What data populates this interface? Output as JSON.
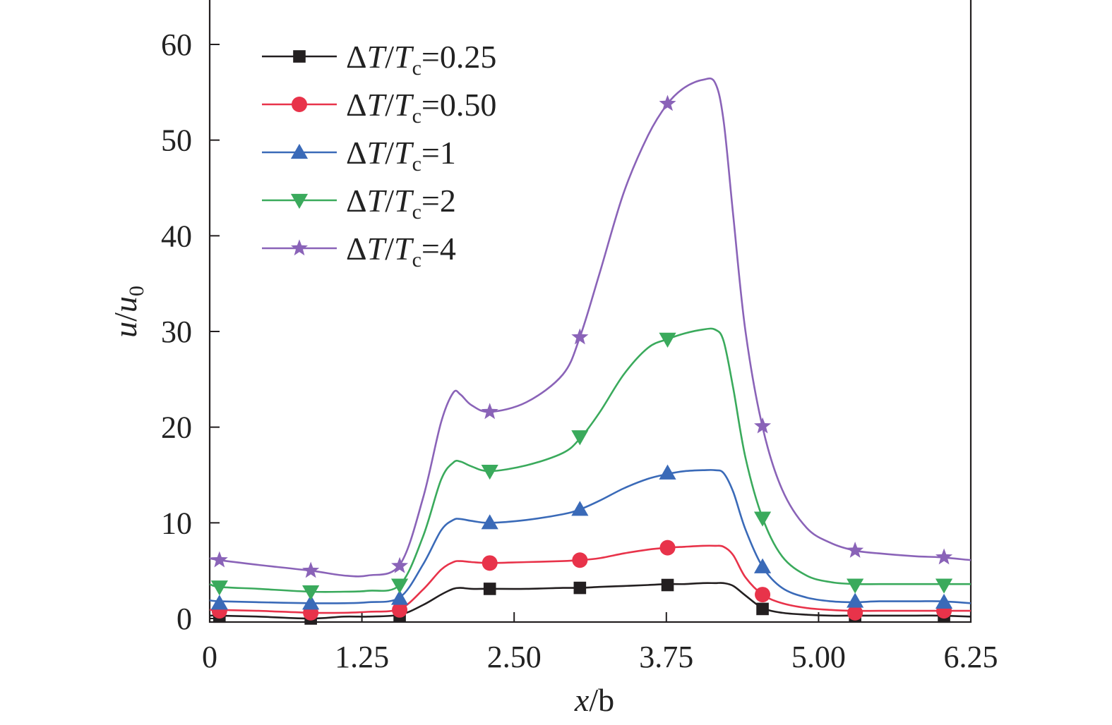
{
  "chart_data": {
    "type": "line",
    "title": "",
    "xlabel": "x/b",
    "xlabel_parts": {
      "var": "x",
      "rest": "/b"
    },
    "ylabel": "u/u0",
    "ylabel_parts": {
      "var": "u",
      "slash": "/",
      "var2": "u",
      "sub": "0"
    },
    "xlim": [
      0,
      6.25
    ],
    "ylim": [
      0,
      65
    ],
    "xticks": [
      0,
      1.25,
      2.5,
      3.75,
      5.0,
      6.25
    ],
    "xtick_labels": [
      "0",
      "1.25",
      "2.50",
      "3.75",
      "5.00",
      "6.25"
    ],
    "yticks": [
      0,
      10,
      20,
      30,
      40,
      50,
      60
    ],
    "ytick_labels": [
      "0",
      "10",
      "20",
      "30",
      "40",
      "50",
      "60"
    ],
    "grid": false,
    "legend_position": "top-left",
    "x": [
      0.0,
      0.08,
      0.4,
      0.83,
      1.1,
      1.3,
      1.56,
      1.75,
      1.9,
      2.0,
      2.06,
      2.15,
      2.3,
      2.6,
      2.9,
      3.04,
      3.2,
      3.4,
      3.6,
      3.76,
      3.9,
      4.05,
      4.15,
      4.22,
      4.3,
      4.4,
      4.54,
      4.7,
      4.9,
      5.1,
      5.3,
      5.5,
      5.8,
      6.0,
      6.25
    ],
    "series": [
      {
        "name": "ΔT/Tc=0.25",
        "legend": {
          "pre": "ΔT/T",
          "sub": "c",
          "post": "=0.25"
        },
        "color": "#231f20",
        "marker": "square",
        "values": [
          0.3,
          0.3,
          0.2,
          0.0,
          0.2,
          0.2,
          0.4,
          1.4,
          2.5,
          3.1,
          3.2,
          3.1,
          3.1,
          3.1,
          3.2,
          3.2,
          3.3,
          3.4,
          3.5,
          3.6,
          3.6,
          3.7,
          3.7,
          3.7,
          3.4,
          2.4,
          1.1,
          0.6,
          0.4,
          0.3,
          0.3,
          0.3,
          0.3,
          0.3,
          0.2
        ],
        "marker_x": [
          0.08,
          0.83,
          1.56,
          2.3,
          3.04,
          3.76,
          4.54,
          5.3,
          6.03
        ],
        "marker_y": [
          0.2,
          0.0,
          0.3,
          3.1,
          3.2,
          3.5,
          1.0,
          0.3,
          0.2
        ]
      },
      {
        "name": "ΔT/Tc=0.50",
        "legend": {
          "pre": "ΔT/T",
          "sub": "c",
          "post": "=0.50"
        },
        "color": "#e8334a",
        "marker": "circle",
        "values": [
          0.9,
          0.9,
          0.8,
          0.6,
          0.6,
          0.7,
          1.0,
          3.0,
          5.1,
          5.9,
          6.0,
          5.9,
          5.8,
          5.9,
          6.0,
          6.1,
          6.3,
          6.8,
          7.2,
          7.4,
          7.5,
          7.6,
          7.6,
          7.5,
          6.6,
          4.3,
          2.5,
          1.6,
          1.1,
          0.9,
          0.8,
          0.8,
          0.8,
          0.8,
          0.8
        ],
        "marker_x": [
          0.08,
          0.83,
          1.56,
          2.3,
          3.04,
          3.76,
          4.54,
          5.3,
          6.03
        ],
        "marker_y": [
          0.8,
          0.6,
          0.9,
          5.8,
          6.1,
          7.4,
          2.5,
          0.6,
          0.8
        ]
      },
      {
        "name": "ΔT/Tc=1",
        "legend": {
          "pre": "ΔT/T",
          "sub": "c",
          "post": "=1"
        },
        "color": "#3a6ab8",
        "marker": "triangle-up",
        "values": [
          1.9,
          1.8,
          1.7,
          1.6,
          1.6,
          1.7,
          2.2,
          5.6,
          9.2,
          10.3,
          10.4,
          10.2,
          10.0,
          10.3,
          10.9,
          11.4,
          12.3,
          13.6,
          14.6,
          15.1,
          15.4,
          15.5,
          15.5,
          15.2,
          13.2,
          9.3,
          5.4,
          3.2,
          2.2,
          1.8,
          1.7,
          1.8,
          1.8,
          1.8,
          1.6
        ],
        "marker_x": [
          0.08,
          0.83,
          1.56,
          2.3,
          3.04,
          3.76,
          4.54,
          5.3,
          6.03
        ],
        "marker_y": [
          1.6,
          1.6,
          2.1,
          10.0,
          11.4,
          15.2,
          5.4,
          1.8,
          1.7
        ]
      },
      {
        "name": "ΔT/Tc=2",
        "legend": {
          "pre": "ΔT/T",
          "sub": "c",
          "post": "=2"
        },
        "color": "#3aaa5c",
        "marker": "triangle-down",
        "values": [
          3.6,
          3.3,
          3.1,
          2.8,
          2.8,
          2.9,
          3.5,
          8.5,
          14.5,
          16.3,
          16.4,
          15.9,
          15.4,
          16.0,
          17.3,
          18.8,
          21.5,
          25.5,
          28.3,
          29.2,
          29.8,
          30.2,
          30.2,
          29.0,
          24.0,
          16.8,
          10.5,
          6.5,
          4.5,
          3.8,
          3.6,
          3.6,
          3.6,
          3.6,
          3.6
        ],
        "marker_x": [
          0.08,
          0.83,
          1.56,
          2.3,
          3.04,
          3.76,
          4.54,
          5.3,
          6.03
        ],
        "marker_y": [
          3.3,
          2.8,
          3.5,
          15.4,
          19.0,
          29.2,
          10.5,
          3.5,
          3.5
        ]
      },
      {
        "name": "ΔT/Tc=4",
        "legend": {
          "pre": "ΔT/T",
          "sub": "c",
          "post": "=4"
        },
        "color": "#8a63b8",
        "marker": "star",
        "values": [
          6.3,
          6.1,
          5.6,
          5.0,
          4.5,
          4.5,
          5.6,
          12.5,
          20.5,
          23.6,
          23.4,
          22.3,
          21.6,
          22.6,
          25.5,
          29.4,
          36.0,
          44.5,
          50.5,
          53.8,
          55.5,
          56.3,
          56.0,
          52.0,
          42.0,
          30.0,
          20.0,
          13.5,
          9.5,
          7.9,
          7.1,
          6.8,
          6.5,
          6.4,
          6.1
        ],
        "marker_x": [
          0.08,
          0.83,
          1.56,
          2.3,
          3.04,
          3.76,
          4.54,
          5.3,
          6.03
        ],
        "marker_y": [
          6.1,
          5.0,
          5.5,
          21.6,
          29.4,
          53.8,
          20.1,
          7.1,
          6.4
        ]
      }
    ]
  }
}
